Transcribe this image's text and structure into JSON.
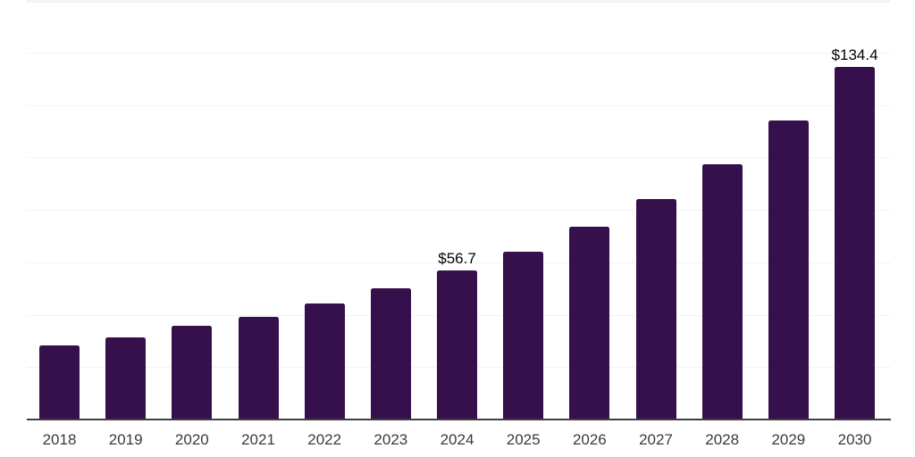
{
  "chart_data": {
    "type": "bar",
    "title": "",
    "xlabel": "",
    "ylabel": "",
    "categories": [
      "2018",
      "2019",
      "2020",
      "2021",
      "2022",
      "2023",
      "2024",
      "2025",
      "2026",
      "2027",
      "2028",
      "2029",
      "2030"
    ],
    "values": [
      28.1,
      31.2,
      35.6,
      39.3,
      44.4,
      50.2,
      56.7,
      63.9,
      73.4,
      84.0,
      97.3,
      114.0,
      134.4
    ],
    "data_labels": [
      null,
      null,
      null,
      null,
      null,
      null,
      "$56.7",
      null,
      null,
      null,
      null,
      null,
      "$134.4"
    ],
    "ylim": [
      0,
      160
    ],
    "grid_step": 20,
    "grid": true,
    "legend": false,
    "colors": {
      "bar": "#36104d",
      "grid_line": "#f3f3f4",
      "axis_line": "#3f3f3f",
      "tick_label": "#3a3a3a",
      "data_label": "#000000",
      "background": "#ffffff"
    }
  }
}
